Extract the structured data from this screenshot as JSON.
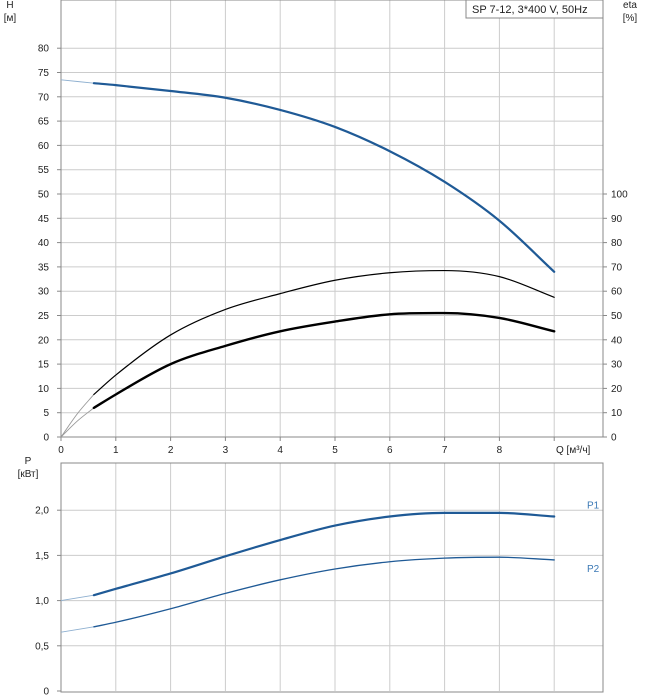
{
  "legend": "SP 7-12, 3*400 V, 50Hz",
  "colors": {
    "grid": "#cccccc",
    "frame": "#888888",
    "head": "#1f5a96",
    "power": "#1f5a96",
    "efficiency": "#000000",
    "label_p": "#3a78b5"
  },
  "chart_data": [
    {
      "type": "line",
      "name": "head-efficiency",
      "ylabel": "H",
      "yunit": "[м]",
      "y2label": "eta",
      "y2unit": "[%]",
      "xlabel": "Q [м³/ч]",
      "xlim": [
        0,
        10
      ],
      "ylim": [
        0,
        85
      ],
      "y2lim": [
        0,
        100
      ],
      "xticks": [
        0,
        1,
        2,
        3,
        4,
        5,
        6,
        7,
        8
      ],
      "yticks": [
        0,
        5,
        10,
        15,
        20,
        25,
        30,
        35,
        40,
        45,
        50,
        55,
        60,
        65,
        70,
        75,
        80
      ],
      "y2ticks": [
        0,
        10,
        20,
        30,
        40,
        50,
        60,
        70,
        80,
        90,
        100
      ],
      "grid": true,
      "series": [
        {
          "key": "head",
          "axis": "left",
          "x": [
            0.6,
            1,
            2,
            3,
            4,
            5,
            6,
            7,
            8,
            9
          ],
          "y": [
            72.8,
            72.4,
            71.2,
            69.8,
            67.3,
            63.8,
            58.8,
            52.5,
            44.5,
            34.0
          ],
          "extension": {
            "x": [
              0,
              0.6
            ],
            "y": [
              73.5,
              72.8
            ]
          }
        },
        {
          "key": "eta-upper",
          "axis": "right",
          "x": [
            0.6,
            1,
            2,
            3,
            4,
            5,
            6,
            7,
            8,
            9
          ],
          "y": [
            17.5,
            25.5,
            42.0,
            52.5,
            59.0,
            64.5,
            67.6,
            68.5,
            66.0,
            57.5
          ],
          "extension": {
            "x": [
              0,
              0.6
            ],
            "y": [
              0,
              17.5
            ]
          }
        },
        {
          "key": "eta-lower",
          "axis": "right",
          "x": [
            0.6,
            1,
            2,
            3,
            4,
            5,
            6,
            7,
            8,
            9
          ],
          "y": [
            12.0,
            17.5,
            30.0,
            37.5,
            43.5,
            47.5,
            50.5,
            51.0,
            49.0,
            43.5
          ],
          "extension": {
            "x": [
              0,
              0.6
            ],
            "y": [
              0,
              12.0
            ]
          }
        }
      ]
    },
    {
      "type": "line",
      "name": "power",
      "ylabel": "P",
      "yunit": "[кВт]",
      "xlim": [
        0,
        10
      ],
      "ylim": [
        0,
        2.35
      ],
      "yticks": [
        "0",
        "0,5",
        "1,0",
        "1,5",
        "2,0"
      ],
      "ytick_values": [
        0,
        0.5,
        1.0,
        1.5,
        2.0
      ],
      "grid": true,
      "series": [
        {
          "key": "P1",
          "name": "P1",
          "x": [
            0.6,
            1,
            2,
            3,
            4,
            5,
            6,
            7,
            8,
            9
          ],
          "y": [
            1.06,
            1.13,
            1.3,
            1.49,
            1.67,
            1.83,
            1.93,
            1.97,
            1.97,
            1.93
          ],
          "extension": {
            "x": [
              0,
              0.6
            ],
            "y": [
              1.0,
              1.06
            ]
          }
        },
        {
          "key": "P2",
          "name": "P2",
          "x": [
            0.6,
            1,
            2,
            3,
            4,
            5,
            6,
            7,
            8,
            9
          ],
          "y": [
            0.71,
            0.76,
            0.91,
            1.08,
            1.23,
            1.35,
            1.43,
            1.47,
            1.48,
            1.45
          ],
          "extension": {
            "x": [
              0,
              0.6
            ],
            "y": [
              0.65,
              0.71
            ]
          }
        }
      ]
    }
  ]
}
